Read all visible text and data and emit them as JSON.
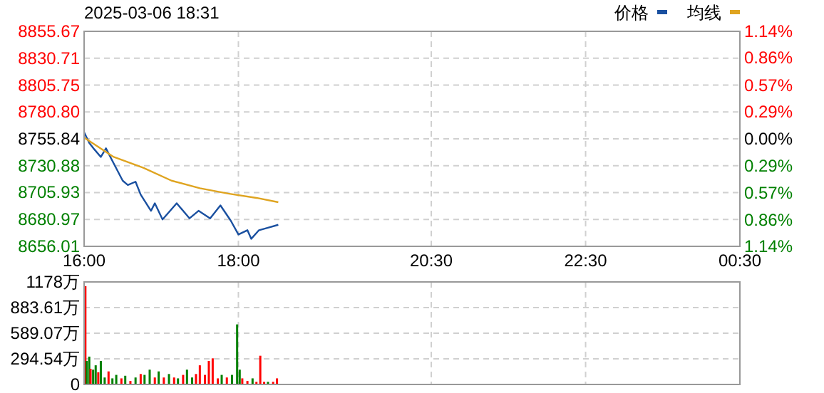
{
  "chart_data": [
    {
      "type": "line",
      "title": "2025-03-06 18:31",
      "legend": "top right",
      "grid": true,
      "xlim": [
        "2025-03-06T16:00",
        "2025-03-07T00:30"
      ],
      "ylim": [
        8656.01,
        8855.67
      ],
      "y2lim": [
        -1.14,
        1.14
      ],
      "xticks": [
        {
          "value": "2025-03-06T16:00",
          "label": "16:00"
        },
        {
          "value": "2025-03-06T18:00",
          "label": "18:00"
        },
        {
          "value": "2025-03-06T20:30",
          "label": "20:30"
        },
        {
          "value": "2025-03-06T22:30",
          "label": "22:30"
        },
        {
          "value": "2025-03-07T00:30",
          "label": "00:30"
        }
      ],
      "yticks": [
        8656.01,
        8680.97,
        8705.93,
        8730.88,
        8755.84,
        {
          "value": 8780.8,
          "label": "8780.80"
        },
        8805.75,
        8830.71,
        8855.67
      ],
      "y2ticks": [
        {
          "value": -1.14,
          "label": "1.14%"
        },
        {
          "value": -0.86,
          "label": "0.86%"
        },
        {
          "value": -0.57,
          "label": "0.57%"
        },
        {
          "value": -0.29,
          "label": "0.29%"
        },
        {
          "value": 0,
          "label": "0.00%"
        },
        {
          "value": 0.29,
          "label": "0.29%"
        },
        {
          "value": 0.57,
          "label": "0.57%"
        },
        {
          "value": 0.86,
          "label": "0.86%"
        },
        {
          "value": 1.14,
          "label": "1.14%"
        }
      ],
      "series": [
        {
          "name": "价格",
          "color": "#1a50a0",
          "x": [
            "2025-03-06T16:00",
            "2025-03-06T16:04",
            "2025-03-06T16:08",
            "2025-03-06T16:13",
            "2025-03-06T16:17",
            "2025-03-06T16:23",
            "2025-03-06T16:30",
            "2025-03-06T16:34",
            "2025-03-06T16:40",
            "2025-03-06T16:44",
            "2025-03-06T16:52",
            "2025-03-06T16:55",
            "2025-03-06T17:01",
            "2025-03-06T17:12",
            "2025-03-06T17:22",
            "2025-03-06T17:29",
            "2025-03-06T17:38",
            "2025-03-06T17:46",
            "2025-03-06T17:54",
            "2025-03-06T18:00",
            "2025-03-06T18:07",
            "2025-03-06T18:10",
            "2025-03-06T18:16",
            "2025-03-06T18:22",
            "2025-03-06T18:31"
          ],
          "values": [
            8762,
            8752,
            8746,
            8739,
            8747,
            8733,
            8717,
            8713,
            8716,
            8704,
            8689,
            8696,
            8681,
            8696,
            8682,
            8689,
            8682,
            8694,
            8680,
            8667,
            8671,
            8663,
            8671,
            8673,
            8676
          ]
        },
        {
          "name": "均线",
          "color": "#dfa420",
          "x": [
            "2025-03-06T16:00",
            "2025-03-06T16:23",
            "2025-03-06T16:46",
            "2025-03-06T17:08",
            "2025-03-06T17:30",
            "2025-03-06T17:52",
            "2025-03-06T18:14",
            "2025-03-06T18:31"
          ],
          "values": [
            8757,
            8739,
            8729,
            8717,
            8710,
            8705,
            8701,
            8697
          ]
        }
      ]
    },
    {
      "type": "bar",
      "grid": true,
      "tick_labels": "y",
      "xlim": [
        "2025-03-06T16:00",
        "2025-03-07T00:30"
      ],
      "ylim": [
        0,
        1178
      ],
      "xticks": [
        {
          "value": "2025-03-06T16:00",
          "label": null
        },
        {
          "value": "2025-03-06T18:00",
          "label": null
        },
        {
          "value": "2025-03-06T20:30",
          "label": null
        },
        {
          "value": "2025-03-06T22:30",
          "label": null
        },
        {
          "value": "2025-03-07T00:30",
          "label": null
        }
      ],
      "yticks": [
        {
          "value": 0,
          "label": "0"
        },
        {
          "value": 294.54,
          "label": "294.54万"
        },
        {
          "value": 589.07,
          "label": "589.07万"
        },
        {
          "value": 883.61,
          "label": "883.61万"
        },
        {
          "value": 1178,
          "label": "1178万"
        }
      ],
      "x": [
        "2025-03-06T16:01",
        "2025-03-06T16:02",
        "2025-03-06T16:04",
        "2025-03-06T16:05",
        "2025-03-06T16:07",
        "2025-03-06T16:09",
        "2025-03-06T16:11",
        "2025-03-06T16:13",
        "2025-03-06T16:16",
        "2025-03-06T16:19",
        "2025-03-06T16:22",
        "2025-03-06T16:25",
        "2025-03-06T16:29",
        "2025-03-06T16:32",
        "2025-03-06T16:36",
        "2025-03-06T16:40",
        "2025-03-06T16:44",
        "2025-03-06T16:47",
        "2025-03-06T16:51",
        "2025-03-06T16:55",
        "2025-03-06T16:58",
        "2025-03-06T17:02",
        "2025-03-06T17:06",
        "2025-03-06T17:10",
        "2025-03-06T17:13",
        "2025-03-06T17:17",
        "2025-03-06T17:20",
        "2025-03-06T17:24",
        "2025-03-06T17:27",
        "2025-03-06T17:30",
        "2025-03-06T17:34",
        "2025-03-06T17:37",
        "2025-03-06T17:40",
        "2025-03-06T17:44",
        "2025-03-06T17:47",
        "2025-03-06T17:51",
        "2025-03-06T17:55",
        "2025-03-06T17:59",
        "2025-03-06T18:01",
        "2025-03-06T18:03",
        "2025-03-06T18:07",
        "2025-03-06T18:11",
        "2025-03-06T18:14",
        "2025-03-06T18:17",
        "2025-03-06T18:20",
        "2025-03-06T18:23",
        "2025-03-06T18:27",
        "2025-03-06T18:30"
      ],
      "values": [
        1130,
        270,
        320,
        180,
        170,
        220,
        140,
        270,
        80,
        150,
        70,
        110,
        70,
        100,
        40,
        80,
        120,
        110,
        170,
        80,
        150,
        80,
        120,
        80,
        70,
        110,
        170,
        80,
        120,
        220,
        110,
        270,
        300,
        70,
        110,
        80,
        110,
        690,
        170,
        70,
        40,
        70,
        30,
        330,
        30,
        30,
        30,
        70
      ],
      "colors": [
        "#ff0000",
        "#008000",
        "#008000",
        "#ff0000",
        "#008000",
        "#008000",
        "#ff0000",
        "#008000",
        "#008000",
        "#ff0000",
        "#008000",
        "#008000",
        "#ff0000",
        "#008000",
        "#ff0000",
        "#008000",
        "#ff0000",
        "#008000",
        "#008000",
        "#ff0000",
        "#008000",
        "#ff0000",
        "#008000",
        "#ff0000",
        "#008000",
        "#ff0000",
        "#008000",
        "#008000",
        "#ff0000",
        "#ff0000",
        "#ff0000",
        "#ff0000",
        "#ff0000",
        "#ff0000",
        "#008000",
        "#ff0000",
        "#008000",
        "#008000",
        "#008000",
        "#ff0000",
        "#ff0000",
        "#008000",
        "#ff0000",
        "#ff0000",
        "#ff0000",
        "#008000",
        "#ff0000",
        "#ff0000"
      ]
    }
  ]
}
